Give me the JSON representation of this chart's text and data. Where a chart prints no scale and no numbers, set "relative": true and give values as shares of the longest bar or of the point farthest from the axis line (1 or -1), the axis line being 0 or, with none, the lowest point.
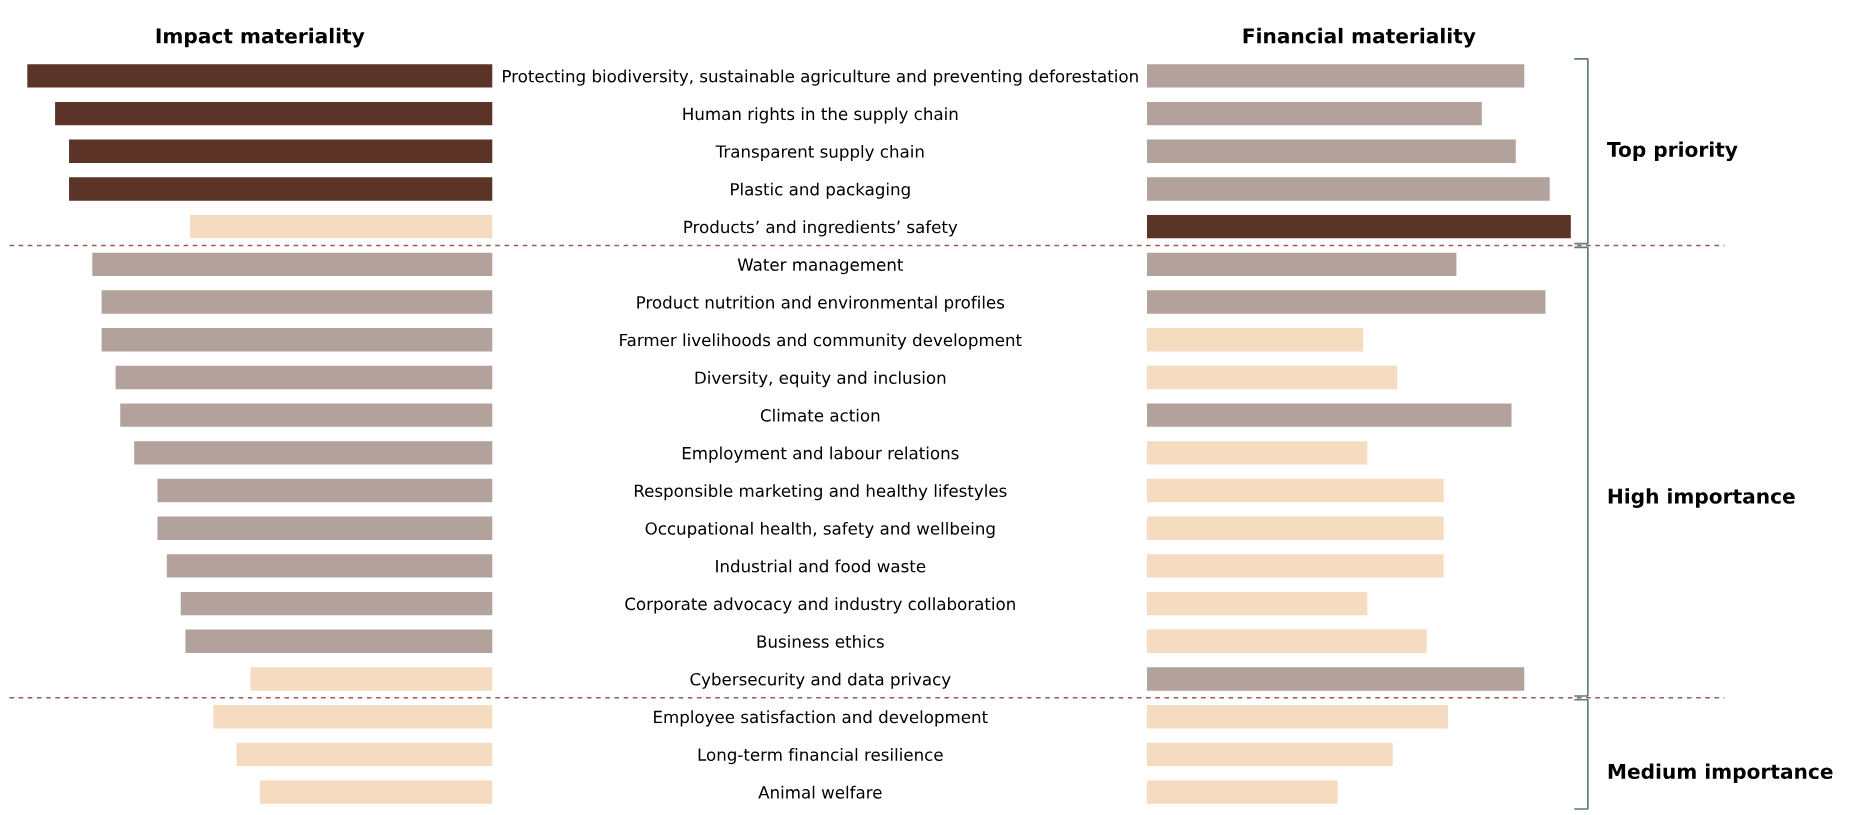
{
  "chart_data": [
    {
      "type": "bar",
      "orientation": "horizontal",
      "relative": true,
      "title": "Impact materiality",
      "tick_labels": "y",
      "categories": [
        "Protecting biodiversity, sustainable agriculture and preventing deforestation",
        "Human rights in the supply chain",
        "Transparent supply chain",
        "Plastic and packaging",
        "Products’ and ingredients’ safety",
        "Water management",
        "Product nutrition and environmental profiles",
        "Farmer livelihoods and community development",
        "Diversity, equity and inclusion",
        "Climate action",
        "Employment and labour relations",
        "Responsible marketing and healthy lifestyles",
        "Occupational health, safety and wellbeing",
        "Industrial and food waste",
        "Corporate advocacy and industry collaboration",
        "Business ethics",
        "Cybersecurity and data privacy",
        "Employee satisfaction and development",
        "Long-term financial resilience",
        "Animal welfare"
      ],
      "values": [
        1.0,
        0.94,
        0.91,
        0.91,
        0.65,
        0.86,
        0.84,
        0.84,
        0.81,
        0.8,
        0.77,
        0.72,
        0.72,
        0.7,
        0.67,
        0.66,
        0.52,
        0.6,
        0.55,
        0.5
      ],
      "colors": [
        "#5c3327",
        "#5c3327",
        "#5c3327",
        "#5c3327",
        "#f5dbc0",
        "#b3a19b",
        "#b3a19b",
        "#b3a19b",
        "#b3a19b",
        "#b3a19b",
        "#b3a19b",
        "#b3a19b",
        "#b3a19b",
        "#b3a19b",
        "#b3a19b",
        "#b3a19b",
        "#f5dbc0",
        "#f5dbc0",
        "#f5dbc0",
        "#f5dbc0"
      ]
    },
    {
      "type": "bar",
      "orientation": "horizontal",
      "relative": true,
      "title": "Financial materiality",
      "tick_labels": false,
      "categories": [
        null,
        null,
        null,
        null,
        null,
        null,
        null,
        null,
        null,
        null,
        null,
        null,
        null,
        null,
        null,
        null,
        null,
        null,
        null,
        null
      ],
      "values": [
        0.89,
        0.79,
        0.87,
        0.95,
        1.0,
        0.73,
        0.94,
        0.51,
        0.59,
        0.86,
        0.52,
        0.7,
        0.7,
        0.7,
        0.52,
        0.66,
        0.89,
        0.71,
        0.58,
        0.45
      ],
      "colors": [
        "#b3a19b",
        "#b3a19b",
        "#b3a19b",
        "#b3a19b",
        "#5c3327",
        "#b3a19b",
        "#b3a19b",
        "#f5dbc0",
        "#f5dbc0",
        "#b3a19b",
        "#f5dbc0",
        "#f5dbc0",
        "#f5dbc0",
        "#f5dbc0",
        "#f5dbc0",
        "#f5dbc0",
        "#b3a19b",
        "#f5dbc0",
        "#f5dbc0",
        "#f5dbc0"
      ],
      "annotations": [
        "Top priority",
        "High importance",
        "Medium importance"
      ]
    }
  ]
}
